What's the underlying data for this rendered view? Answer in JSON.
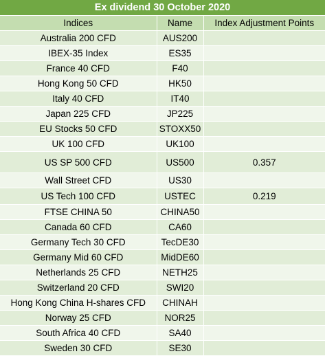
{
  "table": {
    "title": "Ex dividend 30 October 2020",
    "columns": [
      "Indices",
      "Name",
      "Index Adjustment Points"
    ],
    "rows": [
      [
        "Australia 200 CFD",
        "AUS200",
        ""
      ],
      [
        "IBEX-35 Index",
        "ES35",
        ""
      ],
      [
        "France 40 CFD",
        "F40",
        ""
      ],
      [
        "Hong Kong 50 CFD",
        "HK50",
        ""
      ],
      [
        "Italy 40 CFD",
        "IT40",
        ""
      ],
      [
        "Japan 225 CFD",
        "JP225",
        ""
      ],
      [
        "EU Stocks 50 CFD",
        "STOXX50",
        ""
      ],
      [
        "UK 100 CFD",
        "UK100",
        ""
      ],
      [
        "US SP 500 CFD",
        "US500",
        "0.357"
      ],
      [
        "Wall Street CFD",
        "US30",
        ""
      ],
      [
        "US Tech 100 CFD",
        "USTEC",
        "0.219"
      ],
      [
        "FTSE CHINA 50",
        "CHINA50",
        ""
      ],
      [
        "Canada 60 CFD",
        "CA60",
        ""
      ],
      [
        "Germany Tech 30 CFD",
        "TecDE30",
        ""
      ],
      [
        "Germany Mid 60 CFD",
        "MidDE60",
        ""
      ],
      [
        "Netherlands 25 CFD",
        "NETH25",
        ""
      ],
      [
        "Switzerland 20 CFD",
        "SWI20",
        ""
      ],
      [
        "Hong Kong China H-shares CFD",
        "CHINAH",
        ""
      ],
      [
        "Norway 25 CFD",
        "NOR25",
        ""
      ],
      [
        "South Africa 40 CFD",
        "SA40",
        ""
      ],
      [
        "Sweden 30 CFD",
        "SE30",
        ""
      ]
    ]
  }
}
